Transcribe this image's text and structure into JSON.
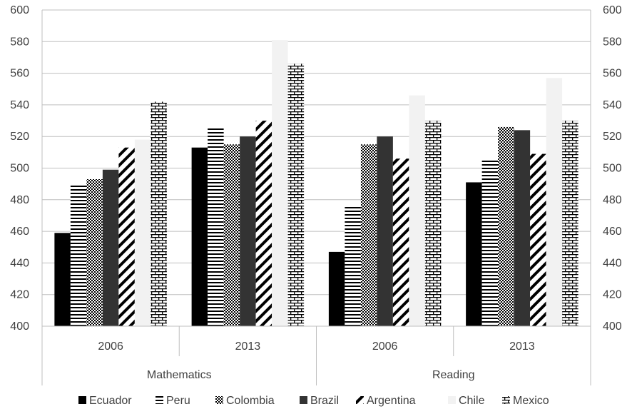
{
  "chart_data": {
    "type": "bar",
    "title": "",
    "xlabel": "",
    "ylabel": "",
    "ylim": [
      400,
      600
    ],
    "yticks": [
      400,
      420,
      440,
      460,
      480,
      500,
      520,
      540,
      560,
      580,
      600
    ],
    "y_axis_sides": "left-and-right",
    "grid": true,
    "legend_position": "bottom",
    "groups": [
      {
        "label": "Mathematics",
        "categories": [
          "2006",
          "2013"
        ]
      },
      {
        "label": "Reading",
        "categories": [
          "2006",
          "2013"
        ]
      }
    ],
    "categories": [
      "2006",
      "2013",
      "2006",
      "2013"
    ],
    "series": [
      {
        "name": "Ecuador",
        "pattern": "solid-black",
        "color": "#000000",
        "values": [
          459,
          513,
          447,
          491
        ]
      },
      {
        "name": "Peru",
        "pattern": "horizontal-lines",
        "color": "#000000",
        "values": [
          489,
          526,
          476,
          505
        ]
      },
      {
        "name": "Colombia",
        "pattern": "checkerboard",
        "color": "#000000",
        "values": [
          493,
          515,
          515,
          526
        ]
      },
      {
        "name": "Brazil",
        "pattern": "solid-dark-gray",
        "color": "#333333",
        "values": [
          499,
          520,
          520,
          524
        ]
      },
      {
        "name": "Argentina",
        "pattern": "diagonal-stripes",
        "color": "#000000",
        "values": [
          513,
          530,
          506,
          509
        ]
      },
      {
        "name": "Chile",
        "pattern": "solid-light-gray",
        "color": "#f2f2f2",
        "values": [
          518,
          581,
          546,
          557
        ]
      },
      {
        "name": "Mexico",
        "pattern": "brick",
        "color": "#000000",
        "values": [
          542,
          566,
          530,
          530
        ]
      }
    ]
  }
}
